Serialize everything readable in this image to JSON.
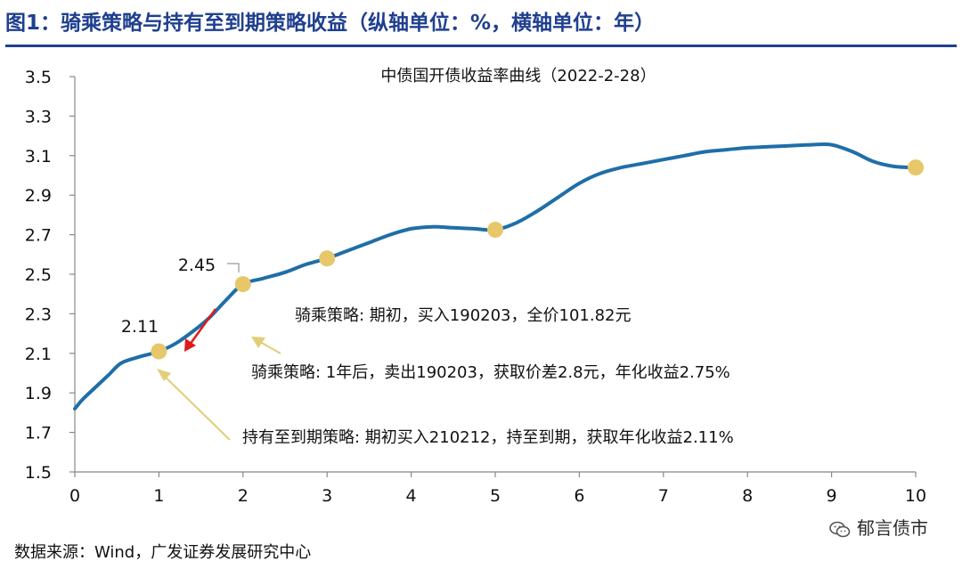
{
  "figure_title": "图1：骑乘策略与持有至到期策略收益（纵轴单位：%，横轴单位：年）",
  "source": "数据来源：Wind，广发证券发展研究中心",
  "watermark": "郁言债市",
  "chart_data": {
    "type": "line",
    "title": "中债国开债收益率曲线（2022-2-28）",
    "xlabel": "",
    "ylabel": "",
    "xlim": [
      0,
      10
    ],
    "ylim": [
      1.5,
      3.5
    ],
    "x_ticks": [
      "0",
      "1",
      "2",
      "3",
      "4",
      "5",
      "6",
      "7",
      "8",
      "9",
      "10"
    ],
    "y_ticks": [
      "3.5",
      "3.3",
      "3.1",
      "2.9",
      "2.7",
      "2.5",
      "2.3",
      "2.1",
      "1.9",
      "1.7",
      "1.5"
    ],
    "grid": false,
    "colors": {
      "line": "#1f6ea8",
      "markers": "#e6c76a",
      "arrows": "#e2cd79",
      "sell_arrow": "#e01a1a"
    },
    "series": [
      {
        "x": [
          0,
          0.1,
          0.25,
          0.4,
          0.55,
          0.75,
          1.0,
          1.2,
          1.4,
          1.6,
          1.8,
          2.0,
          2.25,
          2.5,
          2.75,
          3.0,
          3.25,
          3.5,
          3.75,
          4.0,
          4.25,
          4.5,
          4.75,
          5.0,
          5.25,
          5.5,
          5.75,
          6.0,
          6.25,
          6.5,
          6.75,
          7.0,
          7.25,
          7.5,
          7.75,
          8.0,
          8.25,
          8.5,
          8.75,
          9.0,
          9.25,
          9.5,
          9.75,
          10.0
        ],
        "values": [
          1.82,
          1.87,
          1.93,
          1.99,
          2.05,
          2.08,
          2.11,
          2.15,
          2.21,
          2.28,
          2.37,
          2.45,
          2.48,
          2.51,
          2.55,
          2.58,
          2.62,
          2.66,
          2.7,
          2.73,
          2.74,
          2.735,
          2.73,
          2.725,
          2.76,
          2.82,
          2.89,
          2.96,
          3.01,
          3.04,
          3.06,
          3.08,
          3.1,
          3.12,
          3.13,
          3.14,
          3.145,
          3.15,
          3.155,
          3.155,
          3.12,
          3.07,
          3.045,
          3.04
        ]
      }
    ],
    "markers": [
      {
        "x": 1,
        "y": 2.11,
        "label": "2.11"
      },
      {
        "x": 2,
        "y": 2.45,
        "label": "2.45"
      },
      {
        "x": 3,
        "y": 2.58,
        "label": ""
      },
      {
        "x": 5,
        "y": 2.725,
        "label": ""
      },
      {
        "x": 10,
        "y": 3.04,
        "label": ""
      }
    ],
    "annotations": [
      "骑乘策略: 期初，买入190203，全价101.82元",
      "骑乘策略: 1年后，卖出190203，获取价差2.8元，年化收益2.75%",
      "持有至到期策略: 期初买入210212，持至到期，获取年化收益2.11%"
    ]
  }
}
